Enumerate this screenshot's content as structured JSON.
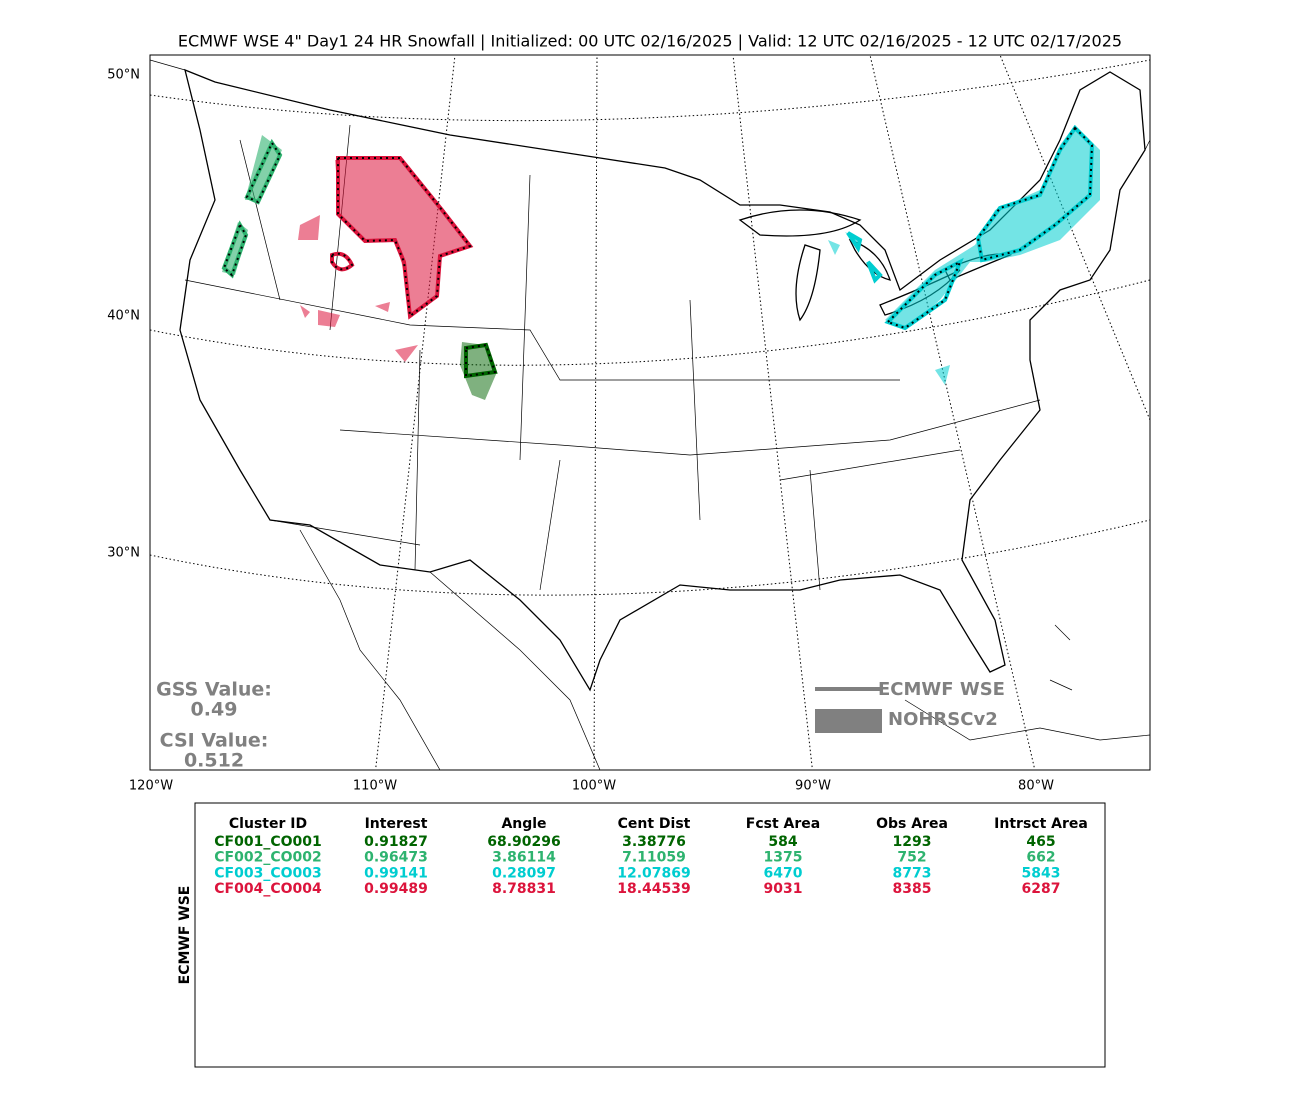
{
  "title": "ECMWF WSE 4\" Day1 24 HR Snowfall | Initialized: 00 UTC 02/16/2025 | Valid: 12 UTC 02/16/2025 - 12 UTC 02/17/2025",
  "map": {
    "lat_labels": [
      "50°N",
      "40°N",
      "30°N"
    ],
    "lon_labels": [
      "120°W",
      "110°W",
      "100°W",
      "90°W",
      "80°W"
    ]
  },
  "stats": {
    "gss_label": "GSS Value:",
    "gss_value": "0.49",
    "csi_label": "CSI Value:",
    "csi_value": "0.512"
  },
  "legend": {
    "items": [
      "ECMWF WSE",
      "NOHRSCv2"
    ]
  },
  "table": {
    "side_label": "ECMWF WSE",
    "columns": [
      "Cluster ID",
      "Interest",
      "Angle",
      "Cent Dist",
      "Fcst Area",
      "Obs Area",
      "Intrsct Area"
    ],
    "rows": [
      {
        "color": "#006400",
        "cells": [
          "CF001_CO001",
          "0.91827",
          "68.90296",
          "3.38776",
          "584",
          "1293",
          "465"
        ]
      },
      {
        "color": "#2eb36f",
        "cells": [
          "CF002_CO002",
          "0.96473",
          "3.86114",
          "7.11059",
          "1375",
          "752",
          "662"
        ]
      },
      {
        "color": "#00cdd0",
        "cells": [
          "CF003_CO003",
          "0.99141",
          "0.28097",
          "12.07869",
          "6470",
          "8773",
          "5843"
        ]
      },
      {
        "color": "#dc143c",
        "cells": [
          "CF004_CO004",
          "0.99489",
          "8.78831",
          "18.44539",
          "9031",
          "8385",
          "6287"
        ]
      }
    ]
  }
}
